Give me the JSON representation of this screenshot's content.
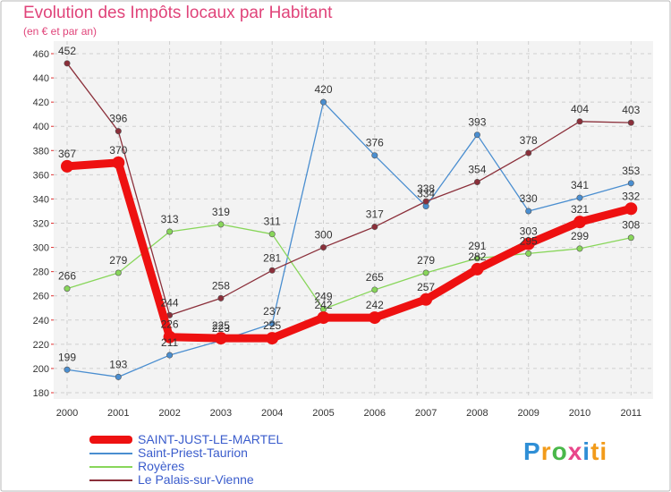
{
  "header": {
    "title": "Evolution des Impôts locaux par Habitant",
    "subtitle": "(en € et par an)"
  },
  "logo": {
    "letters": [
      "P",
      "r",
      "o",
      "x",
      "i",
      "ti"
    ]
  },
  "chart_data": {
    "type": "line",
    "title": "Evolution des Impôts locaux par Habitant",
    "subtitle": "(en € et par an)",
    "xlabel": "",
    "ylabel": "",
    "categories": [
      "2000",
      "2001",
      "2002",
      "2003",
      "2004",
      "2005",
      "2006",
      "2007",
      "2008",
      "2009",
      "2010",
      "2011"
    ],
    "ylim": [
      180,
      460
    ],
    "yticks": [
      180,
      200,
      220,
      240,
      260,
      280,
      300,
      320,
      340,
      360,
      380,
      400,
      420,
      440,
      460
    ],
    "grid": true,
    "legend_position": "bottom-left",
    "series": [
      {
        "name": "SAINT-JUST-LE-MARTEL",
        "color": "#ee1111",
        "values": [
          367,
          370,
          226,
          225,
          225,
          242,
          242,
          257,
          282,
          303,
          321,
          332
        ],
        "labels": [
          "367",
          "370",
          "226",
          "225",
          "225",
          "242",
          "242",
          "257",
          "282",
          "303",
          "321",
          "332"
        ],
        "emphasis": true
      },
      {
        "name": "Saint-Priest-Taurion",
        "color": "#4a8ed0",
        "values": [
          199,
          193,
          211,
          223,
          237,
          420,
          376,
          334,
          393,
          330,
          341,
          353
        ],
        "labels": [
          "199",
          "193",
          "211",
          "223",
          "237",
          "420",
          "376",
          "334",
          "393",
          "330",
          "341",
          "353"
        ],
        "emphasis": false
      },
      {
        "name": "Royères",
        "color": "#88d65a",
        "values": [
          266,
          279,
          313,
          319,
          311,
          249,
          265,
          279,
          291,
          295,
          299,
          308
        ],
        "labels": [
          "266",
          "279",
          "313",
          "319",
          "311",
          "249",
          "265",
          "279",
          "291",
          "295",
          "299",
          "308"
        ],
        "emphasis": false
      },
      {
        "name": "Le Palais-sur-Vienne",
        "color": "#8b2f3a",
        "values": [
          452,
          396,
          244,
          258,
          281,
          300,
          317,
          338,
          354,
          378,
          404,
          403
        ],
        "labels": [
          "452",
          "396",
          "244",
          "258",
          "281",
          "300",
          "317",
          "338",
          "354",
          "378",
          "404",
          "403"
        ],
        "emphasis": false
      }
    ]
  }
}
